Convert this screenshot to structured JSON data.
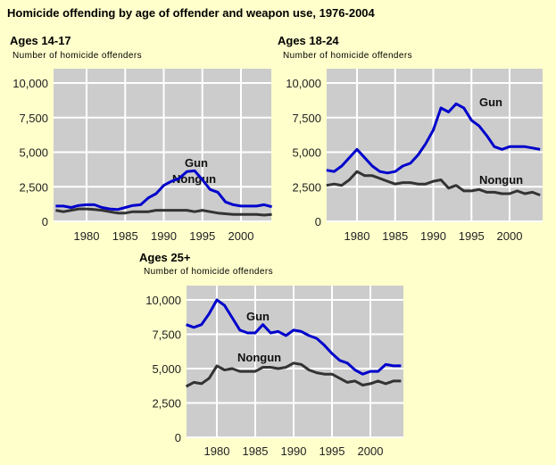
{
  "title": "Homicide offending by age of offender and weapon use, 1976-2004",
  "colors": {
    "background": "#ffffcc",
    "plot_background": "#cccccc",
    "grid": "#ffffff",
    "gun": "#0000cc",
    "nongun": "#333333"
  },
  "chart_data": [
    {
      "type": "line",
      "title": "Ages 14-17",
      "ylabel": "Number of homicide offenders",
      "xlabel": "",
      "grid": true,
      "xlim": [
        1976,
        2004
      ],
      "ylim": [
        0,
        11000
      ],
      "x_ticks": [
        "1980",
        "1985",
        "1990",
        "1995",
        "2000"
      ],
      "y_ticks": [
        "0",
        "2,500",
        "5,000",
        "7,500",
        "10,000"
      ],
      "x": [
        1976,
        1977,
        1978,
        1979,
        1980,
        1981,
        1982,
        1983,
        1984,
        1985,
        1986,
        1987,
        1988,
        1989,
        1990,
        1991,
        1992,
        1993,
        1994,
        1995,
        1996,
        1997,
        1998,
        1999,
        2000,
        2001,
        2002,
        2003,
        2004
      ],
      "series": [
        {
          "name": "Gun",
          "values": [
            1100,
            1100,
            1000,
            1150,
            1200,
            1200,
            1000,
            900,
            850,
            1000,
            1150,
            1200,
            1700,
            2000,
            2600,
            2900,
            3100,
            3600,
            3650,
            3000,
            2300,
            2100,
            1400,
            1200,
            1100,
            1100,
            1100,
            1200,
            1050
          ]
        },
        {
          "name": "Nongun",
          "values": [
            800,
            700,
            800,
            900,
            900,
            850,
            800,
            700,
            600,
            600,
            700,
            700,
            700,
            800,
            800,
            800,
            800,
            800,
            700,
            800,
            700,
            600,
            550,
            500,
            500,
            500,
            500,
            450,
            500
          ]
        }
      ]
    },
    {
      "type": "line",
      "title": "Ages 18-24",
      "ylabel": "Number of homicide offenders",
      "xlabel": "",
      "grid": true,
      "xlim": [
        1976,
        2004
      ],
      "ylim": [
        0,
        11000
      ],
      "x_ticks": [
        "1980",
        "1985",
        "1990",
        "1995",
        "2000"
      ],
      "y_ticks": [
        "0",
        "2,500",
        "5,000",
        "7,500",
        "10,000"
      ],
      "x": [
        1976,
        1977,
        1978,
        1979,
        1980,
        1981,
        1982,
        1983,
        1984,
        1985,
        1986,
        1987,
        1988,
        1989,
        1990,
        1991,
        1992,
        1993,
        1994,
        1995,
        1996,
        1997,
        1998,
        1999,
        2000,
        2001,
        2002,
        2003,
        2004
      ],
      "series": [
        {
          "name": "Gun",
          "values": [
            3700,
            3600,
            4000,
            4600,
            5200,
            4600,
            4000,
            3600,
            3500,
            3600,
            4000,
            4200,
            4800,
            5600,
            6600,
            8200,
            7900,
            8500,
            8200,
            7300,
            6900,
            6200,
            5400,
            5200,
            5400,
            5400,
            5400,
            5300,
            5200
          ]
        },
        {
          "name": "Nongun",
          "values": [
            2600,
            2700,
            2600,
            3000,
            3600,
            3300,
            3300,
            3100,
            2900,
            2700,
            2800,
            2800,
            2700,
            2700,
            2900,
            3000,
            2400,
            2600,
            2200,
            2200,
            2300,
            2100,
            2100,
            2000,
            2000,
            2200,
            2000,
            2100,
            1900
          ]
        }
      ]
    },
    {
      "type": "line",
      "title": "Ages 25+",
      "ylabel": "Number of homicide offenders",
      "xlabel": "",
      "grid": true,
      "xlim": [
        1976,
        2004
      ],
      "ylim": [
        0,
        11000
      ],
      "x_ticks": [
        "1980",
        "1985",
        "1990",
        "1995",
        "2000"
      ],
      "y_ticks": [
        "0",
        "2,500",
        "5,000",
        "7,500",
        "10,000"
      ],
      "x": [
        1976,
        1977,
        1978,
        1979,
        1980,
        1981,
        1982,
        1983,
        1984,
        1985,
        1986,
        1987,
        1988,
        1989,
        1990,
        1991,
        1992,
        1993,
        1994,
        1995,
        1996,
        1997,
        1998,
        1999,
        2000,
        2001,
        2002,
        2003,
        2004
      ],
      "series": [
        {
          "name": "Gun",
          "values": [
            8200,
            8000,
            8200,
            9000,
            10000,
            9600,
            8700,
            7800,
            7600,
            7600,
            8200,
            7600,
            7700,
            7400,
            7800,
            7700,
            7400,
            7200,
            6700,
            6100,
            5600,
            5400,
            4900,
            4600,
            4800,
            4800,
            5300,
            5200,
            5200
          ]
        },
        {
          "name": "Nongun",
          "values": [
            3700,
            4000,
            3900,
            4300,
            5200,
            4900,
            5000,
            4800,
            4800,
            4800,
            5100,
            5100,
            5000,
            5100,
            5400,
            5300,
            4900,
            4700,
            4600,
            4600,
            4300,
            4000,
            4100,
            3800,
            3900,
            4100,
            3900,
            4100,
            4100
          ]
        }
      ]
    }
  ]
}
